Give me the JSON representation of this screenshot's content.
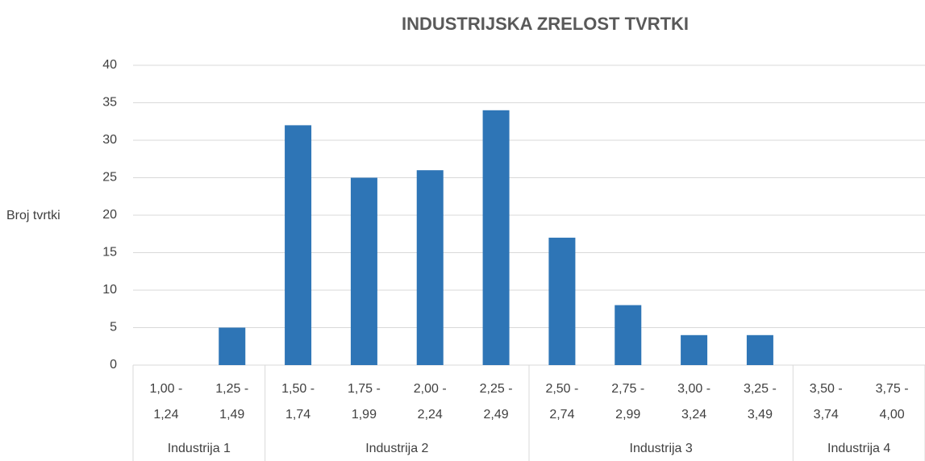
{
  "chart_data": {
    "type": "bar",
    "title": "INDUSTRIJSKA ZRELOST TVRTKI",
    "y_label": "Broj tvrtki",
    "categories": [
      "1,00 - 1,24",
      "1,25 - 1,49",
      "1,50 - 1,74",
      "1,75 - 1,99",
      "2,00 - 2,24",
      "2,25 - 2,49",
      "2,50 - 2,74",
      "2,75 - 2,99",
      "3,00 - 3,24",
      "3,25 - 3,49",
      "3,50 - 3,74",
      "3,75 - 4,00"
    ],
    "category_groups": [
      "Industrija 1",
      "Industrija 1",
      "Industrija 2",
      "Industrija 2",
      "Industrija 2",
      "Industrija 2",
      "Industrija 3",
      "Industrija 3",
      "Industrija 3",
      "Industrija 3",
      "Industrija 4",
      "Industrija 4"
    ],
    "values": [
      0,
      5,
      32,
      25,
      26,
      34,
      17,
      8,
      4,
      4,
      0,
      0
    ],
    "color": "#2e75b6",
    "ylim": [
      0,
      40
    ],
    "yticks": [
      0,
      5,
      10,
      15,
      20,
      25,
      30,
      35,
      40
    ],
    "grid": true
  }
}
